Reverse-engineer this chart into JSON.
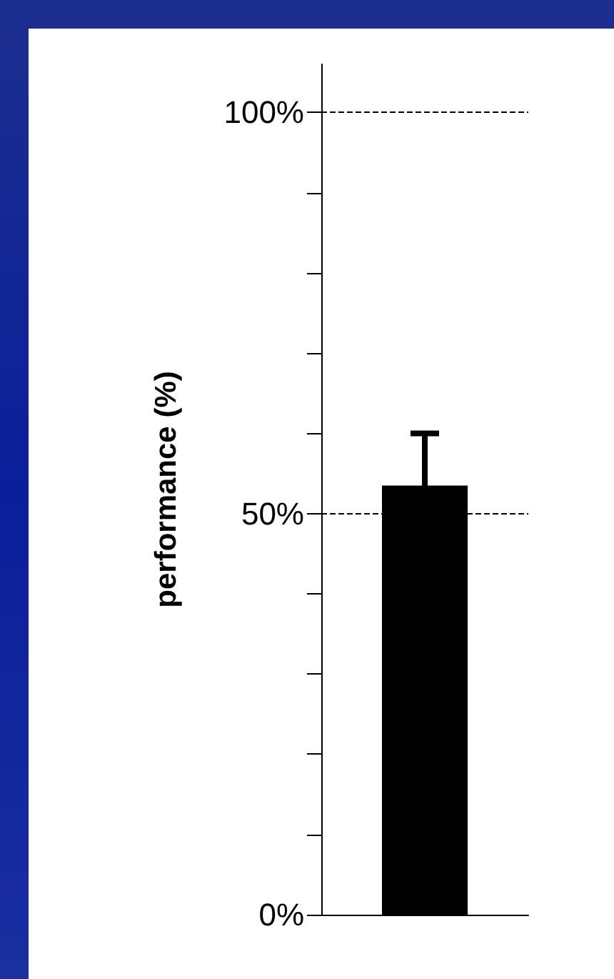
{
  "chart_data": {
    "type": "bar",
    "ylabel": "performance (%)",
    "categories": [
      null
    ],
    "values": [
      53.5
    ],
    "color": "#000000",
    "errors": [
      6.5
    ],
    "ylim": [
      0,
      106
    ],
    "yticks": [
      {
        "value": 0,
        "label": "0%"
      },
      {
        "value": 10,
        "label": null
      },
      {
        "value": 20,
        "label": null
      },
      {
        "value": 30,
        "label": null
      },
      {
        "value": 40,
        "label": null
      },
      {
        "value": 50,
        "label": "50%"
      },
      {
        "value": 60,
        "label": null
      },
      {
        "value": 70,
        "label": null
      },
      {
        "value": 80,
        "label": null
      },
      {
        "value": 90,
        "label": null
      },
      {
        "value": 100,
        "label": "100%"
      }
    ],
    "ref_lines": [
      {
        "axis": "y",
        "value": 50,
        "line_style": "dashed",
        "color": "#000000"
      },
      {
        "axis": "y",
        "value": 100,
        "line_style": "dashed",
        "color": "#000000"
      }
    ],
    "grid": false
  }
}
